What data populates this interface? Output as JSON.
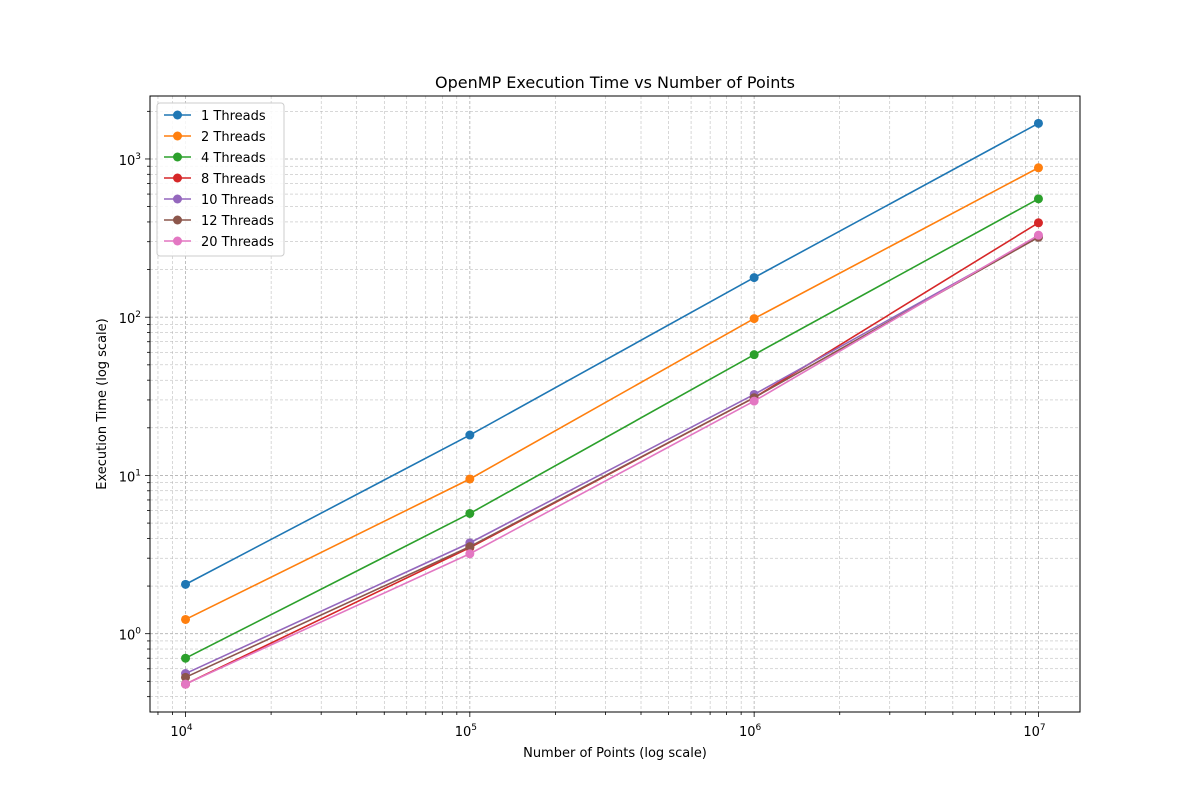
{
  "chart_data": {
    "type": "line",
    "title": "OpenMP Execution Time vs Number of Points",
    "xlabel": "Number of Points (log scale)",
    "ylabel": "Execution Time (log scale)",
    "x_scale": "log",
    "y_scale": "log",
    "x": [
      10000,
      100000,
      1000000,
      10000000
    ],
    "x_tick_labels": [
      {
        "value": 10000,
        "base": "10",
        "exp": "4"
      },
      {
        "value": 100000,
        "base": "10",
        "exp": "5"
      },
      {
        "value": 1000000,
        "base": "10",
        "exp": "6"
      },
      {
        "value": 10000000,
        "base": "10",
        "exp": "7"
      }
    ],
    "y_tick_labels": [
      {
        "value": 1,
        "base": "10",
        "exp": "0"
      },
      {
        "value": 10,
        "base": "10",
        "exp": "1"
      },
      {
        "value": 100,
        "base": "10",
        "exp": "2"
      },
      {
        "value": 1000,
        "base": "10",
        "exp": "3"
      }
    ],
    "xlim": [
      7500,
      14000000
    ],
    "ylim": [
      0.32,
      2500
    ],
    "grid": true,
    "legend_position": "upper-left",
    "marker": "circle",
    "series": [
      {
        "name": "1 Threads",
        "color": "#1f77b4",
        "values": [
          2.05,
          18,
          178,
          1680
        ]
      },
      {
        "name": "2 Threads",
        "color": "#ff7f0e",
        "values": [
          1.23,
          9.5,
          98,
          880
        ]
      },
      {
        "name": "4 Threads",
        "color": "#2ca02c",
        "values": [
          0.7,
          5.75,
          58,
          560
        ]
      },
      {
        "name": "8 Threads",
        "color": "#d62728",
        "values": [
          0.48,
          3.5,
          31,
          395
        ]
      },
      {
        "name": "10 Threads",
        "color": "#9467bd",
        "values": [
          0.56,
          3.75,
          32.5,
          322
        ]
      },
      {
        "name": "12 Threads",
        "color": "#8c564b",
        "values": [
          0.53,
          3.55,
          31,
          320
        ]
      },
      {
        "name": "20 Threads",
        "color": "#e377c2",
        "values": [
          0.48,
          3.2,
          29.5,
          330
        ]
      }
    ]
  }
}
